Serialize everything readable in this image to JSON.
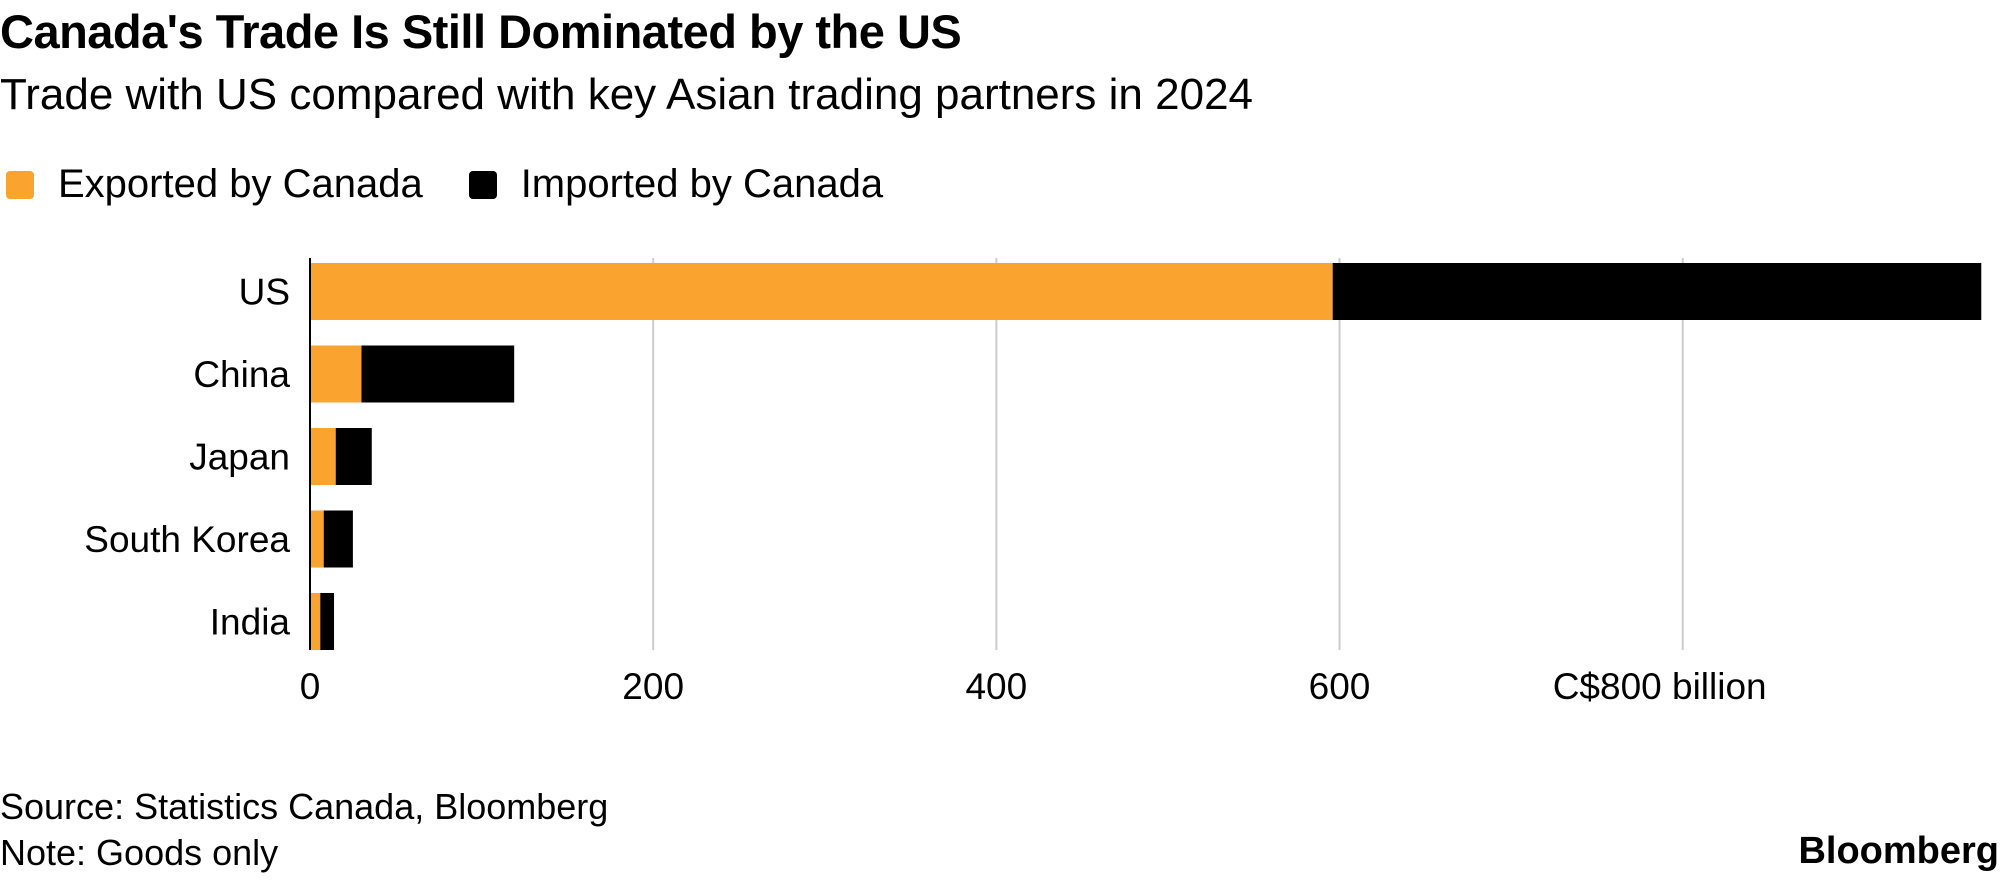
{
  "header": {
    "title": "Canada's Trade Is Still Dominated by the US",
    "subtitle": "Trade with US compared with key Asian trading partners in 2024"
  },
  "legend": {
    "items": [
      {
        "label": "Exported by Canada",
        "color": "#FAA32F"
      },
      {
        "label": "Imported by Canada",
        "color": "#000000"
      }
    ]
  },
  "footer": {
    "source": "Source: Statistics Canada, Bloomberg",
    "note": "Note: Goods only",
    "brand": "Bloomberg"
  },
  "chart_data": {
    "type": "bar",
    "orientation": "horizontal",
    "stacked": true,
    "title": "Canada's Trade Is Still Dominated by the US",
    "subtitle": "Trade with US compared with key Asian trading partners in 2024",
    "categories": [
      "US",
      "China",
      "Japan",
      "South Korea",
      "India"
    ],
    "series": [
      {
        "name": "Exported by Canada",
        "color": "#FAA32F",
        "values": [
          596,
          30,
          15,
          8,
          6
        ]
      },
      {
        "name": "Imported by Canada",
        "color": "#000000",
        "values": [
          378,
          89,
          21,
          17,
          8
        ]
      }
    ],
    "xlim": [
      0,
      975
    ],
    "xticks": [
      0,
      200,
      400,
      600,
      800
    ],
    "xtick_labels": [
      "0",
      "200",
      "400",
      "600",
      "C$800 billion"
    ],
    "grid": true,
    "legend_position": "top-left"
  }
}
